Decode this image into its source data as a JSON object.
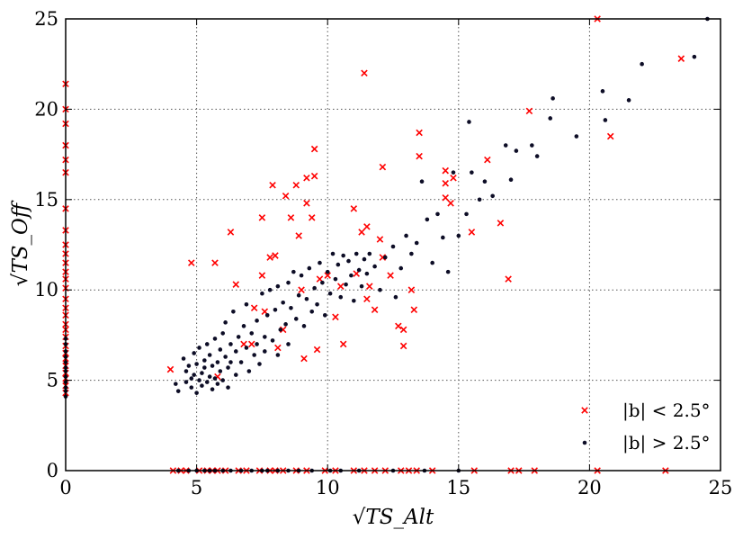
{
  "chart_data": {
    "type": "scatter",
    "xlabel": "√TS_Alt",
    "ylabel": "√TS_Off",
    "xlim": [
      0,
      25
    ],
    "ylim": [
      0,
      25
    ],
    "xticks": [
      "0",
      "5",
      "10",
      "15",
      "20",
      "25"
    ],
    "yticks": [
      "0",
      "5",
      "10",
      "15",
      "20",
      "25"
    ],
    "grid": true,
    "legend_position": "bottom-right",
    "series": [
      {
        "name": "|b| < 2.5°",
        "marker": "x",
        "color": "#ff0000",
        "points": [
          [
            4.0,
            5.6
          ],
          [
            4.8,
            11.5
          ],
          [
            5.7,
            11.5
          ],
          [
            5.8,
            5.2
          ],
          [
            6.3,
            13.2
          ],
          [
            6.5,
            10.3
          ],
          [
            6.8,
            7.0
          ],
          [
            7.1,
            7.0
          ],
          [
            7.2,
            9.0
          ],
          [
            7.5,
            14.0
          ],
          [
            7.5,
            10.8
          ],
          [
            7.6,
            8.8
          ],
          [
            7.8,
            11.8
          ],
          [
            7.9,
            15.8
          ],
          [
            8.0,
            11.9
          ],
          [
            8.1,
            6.8
          ],
          [
            8.3,
            7.8
          ],
          [
            8.4,
            15.2
          ],
          [
            8.6,
            14.0
          ],
          [
            8.8,
            15.8
          ],
          [
            8.9,
            13.0
          ],
          [
            9.0,
            10.0
          ],
          [
            9.1,
            6.2
          ],
          [
            9.2,
            14.8
          ],
          [
            9.2,
            16.2
          ],
          [
            9.4,
            14.0
          ],
          [
            9.5,
            17.8
          ],
          [
            9.5,
            16.3
          ],
          [
            9.6,
            6.7
          ],
          [
            9.7,
            10.6
          ],
          [
            10.0,
            10.8
          ],
          [
            10.3,
            8.5
          ],
          [
            10.5,
            10.2
          ],
          [
            10.6,
            7.0
          ],
          [
            11.0,
            14.5
          ],
          [
            11.1,
            10.9
          ],
          [
            11.3,
            13.2
          ],
          [
            11.4,
            22.0
          ],
          [
            11.5,
            13.5
          ],
          [
            11.5,
            9.5
          ],
          [
            11.6,
            10.2
          ],
          [
            11.8,
            8.9
          ],
          [
            12.0,
            12.8
          ],
          [
            12.1,
            16.8
          ],
          [
            12.1,
            11.8
          ],
          [
            12.4,
            10.8
          ],
          [
            12.7,
            8.0
          ],
          [
            12.9,
            7.8
          ],
          [
            12.9,
            6.9
          ],
          [
            13.2,
            10.0
          ],
          [
            13.3,
            8.9
          ],
          [
            13.5,
            18.7
          ],
          [
            13.5,
            17.4
          ],
          [
            14.5,
            16.6
          ],
          [
            14.5,
            15.1
          ],
          [
            14.5,
            15.9
          ],
          [
            14.7,
            14.8
          ],
          [
            14.8,
            16.2
          ],
          [
            15.5,
            13.2
          ],
          [
            16.1,
            17.2
          ],
          [
            16.6,
            13.7
          ],
          [
            16.9,
            10.6
          ],
          [
            17.7,
            19.9
          ],
          [
            20.8,
            18.5
          ],
          [
            20.3,
            25.0
          ],
          [
            23.5,
            22.8
          ],
          [
            0,
            4.3
          ],
          [
            0,
            4.7
          ],
          [
            0,
            5.1
          ],
          [
            0,
            5.4
          ],
          [
            0,
            5.8
          ],
          [
            0,
            6.2
          ],
          [
            0,
            6.5
          ],
          [
            0,
            6.9
          ],
          [
            0,
            7.4
          ],
          [
            0,
            7.8
          ],
          [
            0,
            8.1
          ],
          [
            0,
            8.6
          ],
          [
            0,
            9.0
          ],
          [
            0,
            9.5
          ],
          [
            0,
            10.1
          ],
          [
            0,
            10.6
          ],
          [
            0,
            11.0
          ],
          [
            0,
            11.5
          ],
          [
            0,
            12.0
          ],
          [
            0,
            12.5
          ],
          [
            0,
            13.3
          ],
          [
            0,
            14.5
          ],
          [
            0,
            16.5
          ],
          [
            0,
            17.2
          ],
          [
            0,
            18.0
          ],
          [
            0,
            19.2
          ],
          [
            0,
            20.0
          ],
          [
            0,
            21.4
          ],
          [
            4.1,
            0
          ],
          [
            4.4,
            0
          ],
          [
            4.6,
            0
          ],
          [
            5.1,
            0
          ],
          [
            5.4,
            0
          ],
          [
            5.6,
            0
          ],
          [
            5.8,
            0
          ],
          [
            6.1,
            0
          ],
          [
            6.6,
            0
          ],
          [
            6.9,
            0
          ],
          [
            7.4,
            0
          ],
          [
            7.8,
            0
          ],
          [
            8.0,
            0
          ],
          [
            8.3,
            0
          ],
          [
            8.8,
            0
          ],
          [
            9.2,
            0
          ],
          [
            9.9,
            0
          ],
          [
            10.3,
            0
          ],
          [
            11.0,
            0
          ],
          [
            11.4,
            0
          ],
          [
            11.8,
            0
          ],
          [
            12.2,
            0
          ],
          [
            12.8,
            0
          ],
          [
            13.1,
            0
          ],
          [
            13.4,
            0
          ],
          [
            14.0,
            0
          ],
          [
            15.6,
            0
          ],
          [
            17.0,
            0
          ],
          [
            17.3,
            0
          ],
          [
            17.9,
            0
          ],
          [
            20.3,
            0
          ],
          [
            22.9,
            0
          ]
        ]
      },
      {
        "name": "|b| > 2.5°",
        "marker": "dot",
        "color": "#0d0d26",
        "points": [
          [
            4.2,
            4.8
          ],
          [
            4.3,
            4.4
          ],
          [
            4.5,
            6.2
          ],
          [
            4.6,
            5.5
          ],
          [
            4.6,
            4.9
          ],
          [
            4.7,
            5.8
          ],
          [
            4.8,
            5.1
          ],
          [
            4.8,
            4.6
          ],
          [
            4.9,
            6.5
          ],
          [
            4.9,
            5.3
          ],
          [
            5.0,
            4.3
          ],
          [
            5.0,
            5.9
          ],
          [
            5.1,
            5.0
          ],
          [
            5.1,
            6.8
          ],
          [
            5.2,
            5.4
          ],
          [
            5.2,
            4.7
          ],
          [
            5.3,
            6.1
          ],
          [
            5.3,
            5.7
          ],
          [
            5.4,
            4.9
          ],
          [
            5.4,
            7.0
          ],
          [
            5.5,
            5.2
          ],
          [
            5.5,
            6.4
          ],
          [
            5.6,
            4.5
          ],
          [
            5.6,
            5.8
          ],
          [
            5.7,
            7.3
          ],
          [
            5.7,
            5.1
          ],
          [
            5.8,
            6.0
          ],
          [
            5.8,
            4.8
          ],
          [
            5.9,
            6.7
          ],
          [
            5.9,
            5.5
          ],
          [
            6.0,
            7.6
          ],
          [
            6.0,
            5.0
          ],
          [
            6.1,
            6.3
          ],
          [
            6.1,
            8.2
          ],
          [
            6.2,
            5.7
          ],
          [
            6.2,
            4.6
          ],
          [
            6.3,
            7.0
          ],
          [
            6.3,
            6.0
          ],
          [
            6.4,
            8.8
          ],
          [
            6.5,
            5.3
          ],
          [
            6.5,
            6.6
          ],
          [
            6.6,
            7.4
          ],
          [
            6.7,
            6.0
          ],
          [
            6.8,
            8.0
          ],
          [
            6.9,
            6.8
          ],
          [
            6.9,
            9.2
          ],
          [
            7.0,
            5.5
          ],
          [
            7.1,
            7.6
          ],
          [
            7.2,
            6.4
          ],
          [
            7.3,
            8.3
          ],
          [
            7.3,
            7.0
          ],
          [
            7.4,
            5.9
          ],
          [
            7.5,
            9.8
          ],
          [
            7.6,
            7.4
          ],
          [
            7.6,
            6.6
          ],
          [
            7.7,
            8.6
          ],
          [
            7.8,
            10.0
          ],
          [
            7.9,
            7.2
          ],
          [
            8.0,
            8.9
          ],
          [
            8.1,
            6.4
          ],
          [
            8.1,
            10.2
          ],
          [
            8.2,
            7.8
          ],
          [
            8.3,
            9.3
          ],
          [
            8.4,
            8.1
          ],
          [
            8.5,
            10.4
          ],
          [
            8.5,
            7.0
          ],
          [
            8.6,
            9.0
          ],
          [
            8.7,
            11.0
          ],
          [
            8.8,
            8.4
          ],
          [
            8.9,
            9.7
          ],
          [
            9.0,
            10.8
          ],
          [
            9.1,
            8.0
          ],
          [
            9.2,
            9.5
          ],
          [
            9.3,
            11.2
          ],
          [
            9.4,
            8.8
          ],
          [
            9.5,
            10.1
          ],
          [
            9.6,
            9.2
          ],
          [
            9.7,
            11.5
          ],
          [
            9.8,
            10.4
          ],
          [
            9.9,
            8.6
          ],
          [
            10.0,
            11.0
          ],
          [
            10.1,
            9.8
          ],
          [
            10.2,
            12.0
          ],
          [
            10.3,
            10.6
          ],
          [
            10.4,
            11.4
          ],
          [
            10.5,
            9.6
          ],
          [
            10.6,
            11.9
          ],
          [
            10.7,
            10.3
          ],
          [
            10.8,
            11.6
          ],
          [
            10.9,
            10.8
          ],
          [
            11.0,
            9.4
          ],
          [
            11.1,
            12.0
          ],
          [
            11.2,
            11.1
          ],
          [
            11.3,
            10.2
          ],
          [
            11.4,
            11.7
          ],
          [
            11.5,
            10.9
          ],
          [
            11.6,
            12.0
          ],
          [
            11.8,
            11.3
          ],
          [
            12.0,
            10.0
          ],
          [
            12.2,
            11.8
          ],
          [
            12.5,
            12.4
          ],
          [
            12.6,
            9.6
          ],
          [
            12.8,
            11.2
          ],
          [
            13.0,
            13.0
          ],
          [
            13.2,
            12.0
          ],
          [
            13.4,
            12.6
          ],
          [
            13.6,
            16.0
          ],
          [
            13.8,
            13.9
          ],
          [
            14.0,
            11.5
          ],
          [
            14.2,
            14.2
          ],
          [
            14.4,
            12.9
          ],
          [
            14.6,
            11.0
          ],
          [
            14.8,
            16.5
          ],
          [
            15.0,
            13.0
          ],
          [
            15.3,
            14.2
          ],
          [
            15.4,
            19.3
          ],
          [
            15.5,
            16.5
          ],
          [
            15.8,
            15.0
          ],
          [
            16.0,
            16.0
          ],
          [
            16.3,
            15.2
          ],
          [
            16.8,
            18.0
          ],
          [
            17.0,
            16.1
          ],
          [
            17.2,
            17.7
          ],
          [
            17.8,
            18.0
          ],
          [
            18.0,
            17.4
          ],
          [
            18.5,
            19.5
          ],
          [
            18.6,
            20.6
          ],
          [
            19.5,
            18.5
          ],
          [
            20.5,
            21.0
          ],
          [
            20.6,
            19.4
          ],
          [
            21.5,
            20.5
          ],
          [
            22.0,
            22.5
          ],
          [
            24.0,
            22.9
          ],
          [
            24.5,
            25.0
          ],
          [
            0,
            4.1
          ],
          [
            0,
            4.4
          ],
          [
            0,
            4.6
          ],
          [
            0,
            4.9
          ],
          [
            0,
            5.2
          ],
          [
            0,
            5.5
          ],
          [
            0,
            5.7
          ],
          [
            0,
            6.0
          ],
          [
            0,
            6.3
          ],
          [
            0,
            6.6
          ],
          [
            0,
            7.0
          ],
          [
            0,
            7.3
          ],
          [
            4.3,
            0
          ],
          [
            4.7,
            0
          ],
          [
            5.0,
            0
          ],
          [
            5.3,
            0
          ],
          [
            5.5,
            0
          ],
          [
            5.7,
            0
          ],
          [
            6.0,
            0
          ],
          [
            6.3,
            0
          ],
          [
            6.7,
            0
          ],
          [
            7.1,
            0
          ],
          [
            7.5,
            0
          ],
          [
            7.7,
            0
          ],
          [
            8.1,
            0
          ],
          [
            8.5,
            0
          ],
          [
            8.9,
            0
          ],
          [
            9.4,
            0
          ],
          [
            10.1,
            0
          ],
          [
            10.5,
            0
          ],
          [
            11.2,
            0
          ],
          [
            12.5,
            0
          ],
          [
            13.7,
            0
          ],
          [
            15.0,
            0
          ]
        ]
      }
    ]
  }
}
